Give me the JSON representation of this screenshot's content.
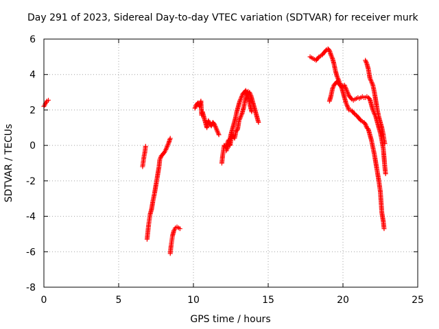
{
  "chart_data": {
    "type": "scatter",
    "title": "Day 291 of 2023, Sidereal Day-to-day VTEC variation (SDTVAR) for receiver murk",
    "xlabel": "GPS time / hours",
    "ylabel": "SDTVAR / TECUs",
    "xlim": [
      0,
      25
    ],
    "ylim": [
      -8,
      6
    ],
    "xticks": [
      0,
      5,
      10,
      15,
      20,
      25
    ],
    "yticks": [
      -8,
      -6,
      -4,
      -2,
      0,
      2,
      4,
      6
    ],
    "grid": true,
    "marker": "+",
    "color": "#ff0000",
    "series": [
      {
        "name": "SDTVAR",
        "segments": [
          [
            [
              0.0,
              2.2
            ],
            [
              0.1,
              2.35
            ],
            [
              0.2,
              2.5
            ],
            [
              0.3,
              2.55
            ]
          ],
          [
            [
              6.6,
              -1.2
            ],
            [
              6.65,
              -0.9
            ],
            [
              6.7,
              -0.6
            ],
            [
              6.75,
              -0.4
            ],
            [
              6.8,
              -0.05
            ]
          ],
          [
            [
              6.9,
              -5.3
            ],
            [
              6.95,
              -4.9
            ],
            [
              7.0,
              -4.5
            ],
            [
              7.05,
              -4.2
            ],
            [
              7.1,
              -3.9
            ],
            [
              7.2,
              -3.6
            ],
            [
              7.3,
              -3.1
            ],
            [
              7.4,
              -2.7
            ],
            [
              7.5,
              -2.2
            ],
            [
              7.6,
              -1.7
            ],
            [
              7.7,
              -1.2
            ],
            [
              7.75,
              -0.8
            ],
            [
              7.85,
              -0.6
            ],
            [
              7.95,
              -0.5
            ],
            [
              8.05,
              -0.4
            ],
            [
              8.15,
              -0.25
            ],
            [
              8.25,
              -0.05
            ],
            [
              8.35,
              0.15
            ],
            [
              8.45,
              0.4
            ]
          ],
          [
            [
              8.45,
              -6.1
            ],
            [
              8.5,
              -5.7
            ],
            [
              8.55,
              -5.4
            ],
            [
              8.6,
              -5.1
            ],
            [
              8.7,
              -4.8
            ],
            [
              8.8,
              -4.65
            ],
            [
              8.9,
              -4.6
            ],
            [
              9.0,
              -4.65
            ],
            [
              9.1,
              -4.7
            ]
          ],
          [
            [
              10.1,
              2.1
            ],
            [
              10.2,
              2.3
            ],
            [
              10.3,
              2.4
            ],
            [
              10.4,
              2.2
            ],
            [
              10.5,
              2.5
            ],
            [
              10.55,
              1.7
            ],
            [
              10.6,
              1.9
            ],
            [
              10.7,
              1.6
            ],
            [
              10.8,
              1.3
            ],
            [
              10.9,
              1.0
            ],
            [
              11.0,
              1.4
            ],
            [
              11.1,
              1.2
            ],
            [
              11.2,
              1.1
            ],
            [
              11.3,
              1.3
            ],
            [
              11.4,
              1.2
            ],
            [
              11.5,
              1.0
            ],
            [
              11.6,
              0.8
            ],
            [
              11.7,
              0.6
            ]
          ],
          [
            [
              11.9,
              -1.0
            ],
            [
              11.95,
              -0.6
            ],
            [
              12.0,
              -0.3
            ],
            [
              12.05,
              0.0
            ],
            [
              12.15,
              -0.1
            ],
            [
              12.25,
              0.1
            ],
            [
              12.35,
              0.3
            ],
            [
              12.45,
              0.0
            ],
            [
              12.55,
              0.5
            ],
            [
              12.65,
              0.6
            ],
            [
              12.75,
              0.4
            ],
            [
              12.85,
              0.8
            ],
            [
              12.95,
              0.9
            ],
            [
              13.05,
              1.4
            ],
            [
              13.15,
              1.6
            ],
            [
              13.25,
              1.8
            ],
            [
              13.35,
              2.1
            ],
            [
              13.45,
              2.5
            ],
            [
              13.55,
              2.8
            ],
            [
              13.65,
              3.05
            ],
            [
              13.75,
              3.0
            ],
            [
              13.85,
              2.8
            ],
            [
              13.95,
              2.5
            ],
            [
              14.05,
              2.2
            ],
            [
              14.15,
              1.9
            ],
            [
              14.25,
              1.6
            ],
            [
              14.35,
              1.3
            ]
          ],
          [
            [
              12.2,
              -0.3
            ],
            [
              12.3,
              -0.1
            ],
            [
              12.4,
              0.2
            ],
            [
              12.5,
              0.6
            ],
            [
              12.6,
              0.9
            ],
            [
              12.7,
              1.2
            ],
            [
              12.8,
              1.5
            ],
            [
              12.9,
              1.9
            ],
            [
              13.0,
              2.2
            ],
            [
              13.1,
              2.5
            ],
            [
              13.2,
              2.7
            ],
            [
              13.3,
              2.9
            ],
            [
              13.4,
              3.0
            ],
            [
              13.5,
              3.1
            ],
            [
              13.6,
              2.9
            ],
            [
              13.7,
              2.6
            ],
            [
              13.8,
              2.2
            ],
            [
              13.9,
              1.9
            ]
          ],
          [
            [
              17.8,
              5.0
            ],
            [
              17.9,
              4.95
            ],
            [
              18.0,
              4.9
            ],
            [
              18.1,
              4.85
            ],
            [
              18.2,
              4.8
            ],
            [
              18.3,
              4.9
            ],
            [
              18.4,
              5.0
            ],
            [
              18.5,
              5.05
            ],
            [
              18.6,
              5.1
            ],
            [
              18.7,
              5.2
            ],
            [
              18.8,
              5.3
            ],
            [
              18.9,
              5.4
            ],
            [
              19.0,
              5.45
            ],
            [
              19.1,
              5.35
            ],
            [
              19.2,
              5.1
            ],
            [
              19.3,
              4.9
            ],
            [
              19.4,
              4.6
            ],
            [
              19.5,
              4.2
            ],
            [
              19.6,
              3.9
            ],
            [
              19.7,
              3.7
            ],
            [
              19.8,
              3.5
            ],
            [
              19.9,
              3.3
            ],
            [
              20.0,
              3.0
            ],
            [
              20.1,
              2.7
            ],
            [
              20.2,
              2.4
            ],
            [
              20.3,
              2.2
            ],
            [
              20.4,
              2.0
            ],
            [
              20.5,
              2.0
            ],
            [
              20.6,
              1.95
            ],
            [
              20.7,
              1.85
            ],
            [
              20.8,
              1.75
            ],
            [
              20.9,
              1.7
            ],
            [
              21.0,
              1.6
            ],
            [
              21.1,
              1.5
            ],
            [
              21.2,
              1.4
            ],
            [
              21.3,
              1.35
            ],
            [
              21.4,
              1.3
            ],
            [
              21.5,
              1.2
            ],
            [
              21.6,
              1.0
            ],
            [
              21.7,
              0.9
            ],
            [
              21.8,
              0.6
            ],
            [
              21.9,
              0.3
            ],
            [
              22.0,
              -0.1
            ],
            [
              22.1,
              -0.5
            ],
            [
              22.2,
              -1.0
            ],
            [
              22.3,
              -1.5
            ],
            [
              22.4,
              -2.0
            ],
            [
              22.5,
              -2.6
            ],
            [
              22.55,
              -3.2
            ],
            [
              22.6,
              -3.8
            ],
            [
              22.7,
              -4.3
            ],
            [
              22.75,
              -4.7
            ]
          ],
          [
            [
              19.1,
              2.5
            ],
            [
              19.2,
              2.8
            ],
            [
              19.3,
              3.2
            ],
            [
              19.4,
              3.4
            ],
            [
              19.5,
              3.5
            ],
            [
              19.6,
              3.6
            ],
            [
              19.7,
              3.5
            ],
            [
              19.8,
              3.4
            ],
            [
              19.9,
              3.3
            ],
            [
              20.0,
              3.35
            ],
            [
              20.1,
              3.4
            ],
            [
              20.2,
              3.2
            ],
            [
              20.3,
              3.0
            ],
            [
              20.4,
              2.8
            ],
            [
              20.5,
              2.7
            ],
            [
              20.6,
              2.6
            ],
            [
              20.7,
              2.55
            ],
            [
              20.8,
              2.6
            ],
            [
              20.9,
              2.65
            ],
            [
              21.0,
              2.7
            ],
            [
              21.1,
              2.65
            ],
            [
              21.2,
              2.7
            ],
            [
              21.3,
              2.75
            ],
            [
              21.4,
              2.7
            ],
            [
              21.5,
              2.7
            ],
            [
              21.6,
              2.75
            ],
            [
              21.7,
              2.7
            ],
            [
              21.8,
              2.6
            ],
            [
              21.9,
              2.3
            ],
            [
              22.0,
              2.0
            ],
            [
              22.1,
              1.8
            ],
            [
              22.2,
              1.6
            ],
            [
              22.3,
              1.3
            ],
            [
              22.4,
              1.0
            ],
            [
              22.5,
              0.7
            ],
            [
              22.6,
              0.3
            ],
            [
              22.7,
              -0.2
            ],
            [
              22.75,
              -0.7
            ],
            [
              22.8,
              -1.2
            ],
            [
              22.85,
              -1.6
            ]
          ],
          [
            [
              21.5,
              4.8
            ],
            [
              21.6,
              4.6
            ],
            [
              21.7,
              4.3
            ],
            [
              21.8,
              3.8
            ],
            [
              21.9,
              3.6
            ],
            [
              22.0,
              3.4
            ],
            [
              22.1,
              3.0
            ],
            [
              22.2,
              2.5
            ],
            [
              22.3,
              2.0
            ],
            [
              22.4,
              1.6
            ],
            [
              22.5,
              1.3
            ],
            [
              22.6,
              1.0
            ],
            [
              22.7,
              0.6
            ],
            [
              22.75,
              0.3
            ],
            [
              22.8,
              0.1
            ]
          ]
        ]
      }
    ]
  }
}
